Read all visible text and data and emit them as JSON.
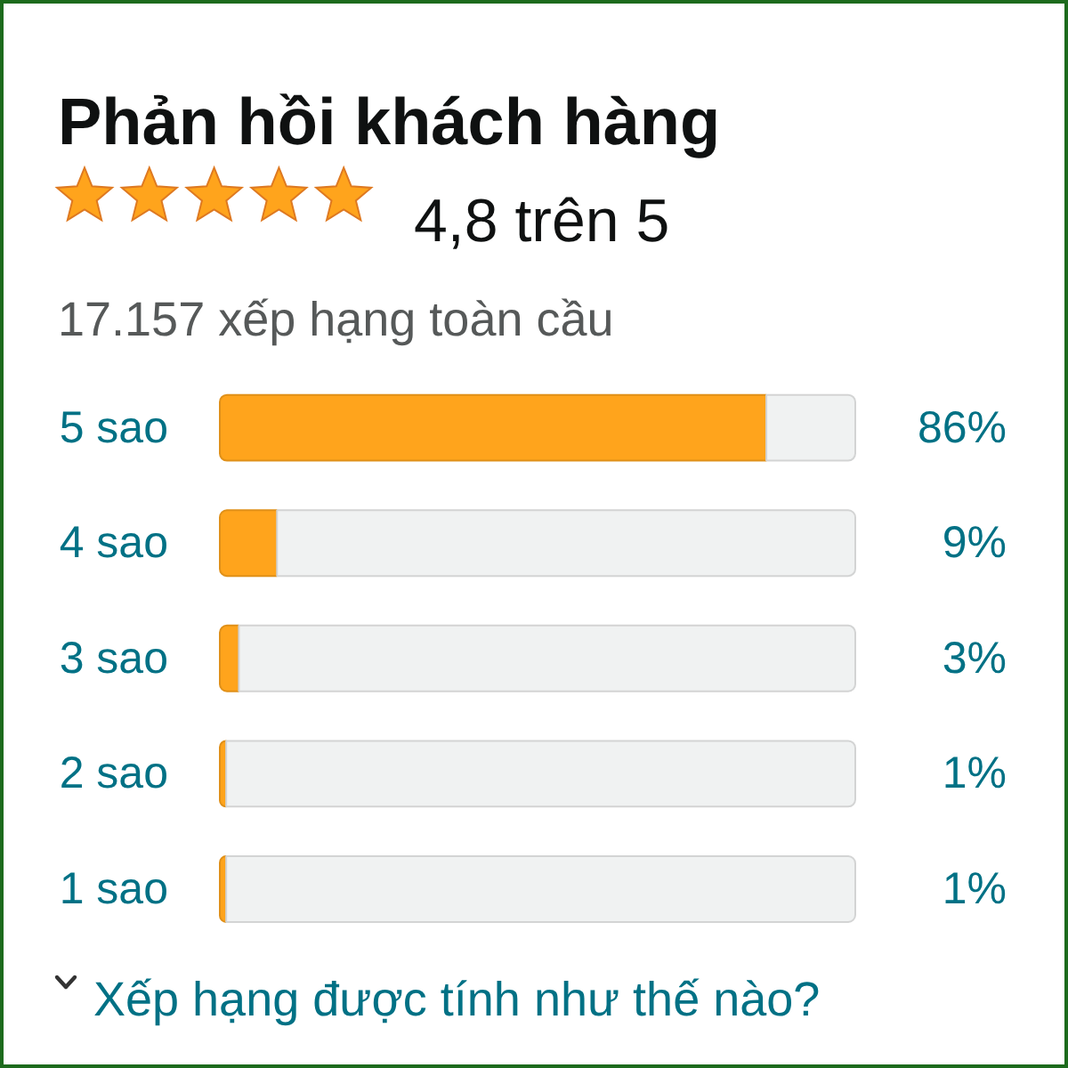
{
  "chart_data": {
    "type": "bar",
    "orientation": "horizontal",
    "stacked": true,
    "title": "Phản hồi khách hàng",
    "subtitle": "4,8 trên 5",
    "annotations": [
      "17.157 xếp hạng toàn cầu",
      "Xếp hạng được tính như thế nào?"
    ],
    "categories": [
      "5 sao",
      "4 sao",
      "3 sao",
      "2 sao",
      "1 sao"
    ],
    "series": [
      {
        "color": "#ffa41c",
        "values": [
          86,
          9,
          3,
          1,
          1
        ],
        "value_labels": [
          "86%",
          "9%",
          "3%",
          "1%",
          "1%"
        ]
      },
      {
        "color": "#f0f2f2",
        "values": [
          14,
          91,
          97,
          99,
          99
        ]
      }
    ],
    "tick_labels": "y"
  }
}
